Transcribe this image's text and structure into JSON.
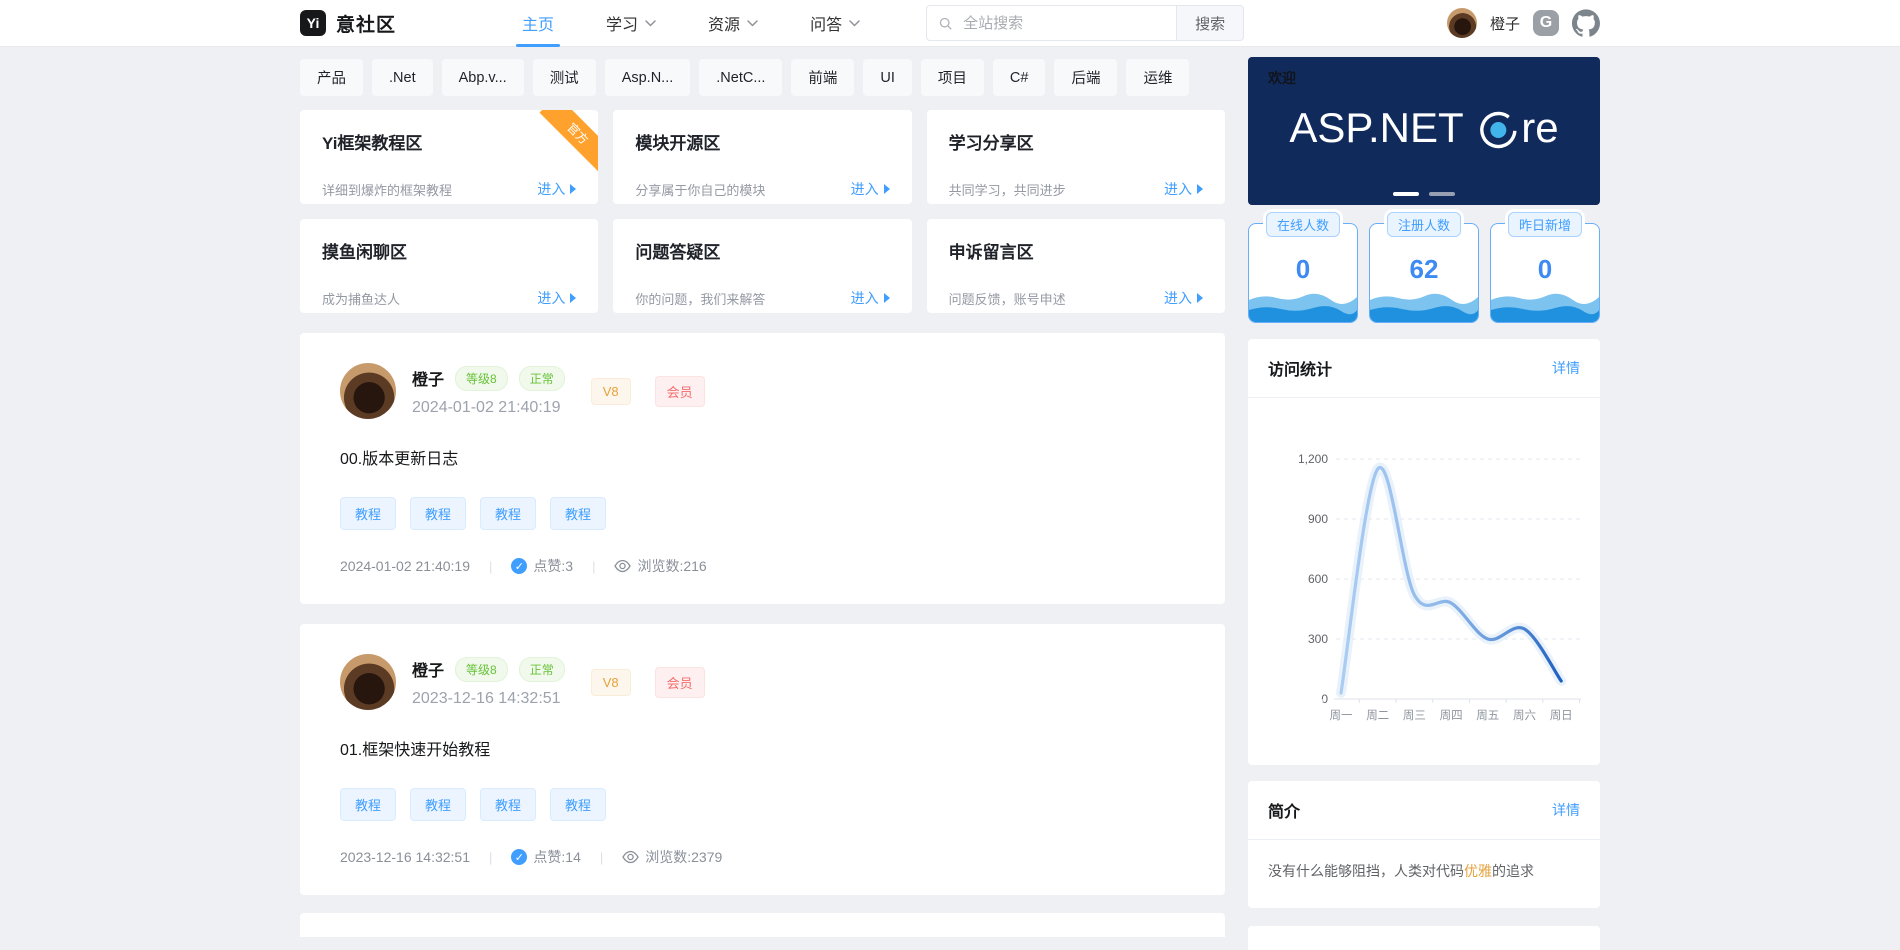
{
  "header": {
    "logo_badge": "Yi",
    "logo": "意社区",
    "nav": [
      {
        "label": "主页",
        "active": true,
        "has_dropdown": false
      },
      {
        "label": "学习",
        "active": false,
        "has_dropdown": true
      },
      {
        "label": "资源",
        "active": false,
        "has_dropdown": true
      },
      {
        "label": "问答",
        "active": false,
        "has_dropdown": true
      }
    ],
    "search": {
      "placeholder": "全站搜索",
      "button": "搜索"
    },
    "user": {
      "name": "橙子"
    },
    "gitee_glyph": "G"
  },
  "topic_tags": [
    "产品",
    ".Net",
    "Abp.v...",
    "测试",
    "Asp.N...",
    ".NetC...",
    "前端",
    "UI",
    "项目",
    "C#",
    "后端",
    "运维"
  ],
  "zones": [
    {
      "title": "Yi框架教程区",
      "desc": "详细到爆炸的框架教程",
      "enter": "进入",
      "ribbon": "官方"
    },
    {
      "title": "模块开源区",
      "desc": "分享属于你自己的模块",
      "enter": "进入",
      "ribbon": ""
    },
    {
      "title": "学习分享区",
      "desc": "共同学习，共同进步",
      "enter": "进入",
      "ribbon": ""
    },
    {
      "title": "摸鱼闲聊区",
      "desc": "成为捕鱼达人",
      "enter": "进入",
      "ribbon": ""
    },
    {
      "title": "问题答疑区",
      "desc": "你的问题，我们来解答",
      "enter": "进入",
      "ribbon": ""
    },
    {
      "title": "申诉留言区",
      "desc": "问题反馈，账号申述",
      "enter": "进入",
      "ribbon": ""
    }
  ],
  "posts": [
    {
      "author": "橙子",
      "level": "等级8",
      "status": "正常",
      "vip": "V8",
      "member": "会员",
      "date": "2024-01-02 21:40:19",
      "title": "00.版本更新日志",
      "tags": [
        "教程",
        "教程",
        "教程",
        "教程"
      ],
      "footer_date": "2024-01-02 21:40:19",
      "likes": "点赞:3",
      "views": "浏览数:216"
    },
    {
      "author": "橙子",
      "level": "等级8",
      "status": "正常",
      "vip": "V8",
      "member": "会员",
      "date": "2023-12-16 14:32:51",
      "title": "01.框架快速开始教程",
      "tags": [
        "教程",
        "教程",
        "教程",
        "教程"
      ],
      "footer_date": "2023-12-16 14:32:51",
      "likes": "点赞:14",
      "views": "浏览数:2379"
    }
  ],
  "sidebar": {
    "banner": {
      "welcome": "欢迎",
      "title": "ASP.NET Core",
      "title_prefix": "ASP.NET",
      "title_suffix": "re"
    },
    "stats": [
      {
        "label": "在线人数",
        "value": "0"
      },
      {
        "label": "注册人数",
        "value": "62"
      },
      {
        "label": "昨日新增",
        "value": "0"
      }
    ],
    "visit_stats": {
      "title": "访问统计",
      "detail": "详情"
    },
    "intro": {
      "title": "简介",
      "detail": "详情",
      "text_before": "没有什么能够阻挡，人类对代码",
      "highlight": "优雅",
      "text_after": "的追求"
    }
  },
  "chart_data": {
    "type": "line",
    "title": "访问统计",
    "x": [
      "周一",
      "周二",
      "周三",
      "周四",
      "周五",
      "周六",
      "周日"
    ],
    "values": [
      30,
      1150,
      520,
      480,
      300,
      350,
      90
    ],
    "xlabel": "",
    "ylabel": "",
    "ylim": [
      0,
      1200
    ],
    "yticks": [
      0,
      300,
      600,
      900,
      1200
    ],
    "ytick_labels": [
      "0",
      "300",
      "600",
      "900",
      "1,200"
    ],
    "grid": "dashed-horizontal",
    "legend": "none",
    "line_colors": [
      "#aacdf2",
      "#1d5fc0"
    ]
  }
}
